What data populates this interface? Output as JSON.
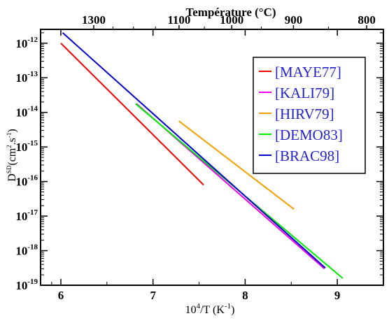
{
  "chart_data": {
    "type": "line",
    "title": "",
    "top_axis": {
      "label": "Température (°C)",
      "ticks": [
        "1300",
        "1100",
        "1000",
        "900",
        "800"
      ],
      "tick_celsius": [
        1300,
        1100,
        1000,
        900,
        800
      ]
    },
    "xlabel": {
      "base": "10",
      "sup1": "4",
      "mid": "/T (K",
      "sup2": "-1",
      "end": ")"
    },
    "ylabel": {
      "base": "D",
      "sup1": "SD",
      "mid": "(cm",
      "sup2": "2",
      "mid2": ".s",
      "sup3": "-1",
      "end": ")"
    },
    "xlim": [
      5.78,
      9.5
    ],
    "ylim_log10": [
      -19,
      -11.6
    ],
    "x_ticks": [
      6,
      7,
      8,
      9
    ],
    "x_tick_labels": [
      "6",
      "7",
      "8",
      "9"
    ],
    "y_tick_exponents": [
      -12,
      -13,
      -14,
      -15,
      -16,
      -17,
      -18,
      -19
    ],
    "y_tick_base": "10",
    "y_tick_labels": [
      "-12",
      "-13",
      "-14",
      "-15",
      "-16",
      "-17",
      "-18",
      "-19"
    ],
    "y_scale": "log",
    "grid": false,
    "legend_position": "top-right",
    "legend_color": "#2222cc",
    "series": [
      {
        "name": "[MAYE77]",
        "color": "#ee0000",
        "x": [
          6.0,
          7.55
        ],
        "y_log10": [
          -12.0,
          -16.1
        ]
      },
      {
        "name": "[KALI79]",
        "color": "#ee00ee",
        "x": [
          6.82,
          8.86
        ],
        "y_log10": [
          -13.75,
          -18.52
        ]
      },
      {
        "name": "[HIRV79]",
        "color": "#f5a000",
        "x": [
          7.28,
          8.53
        ],
        "y_log10": [
          -14.25,
          -16.8
        ]
      },
      {
        "name": "[DEMO83]",
        "color": "#00ee00",
        "x": [
          6.81,
          9.06
        ],
        "y_log10": [
          -13.75,
          -18.8
        ]
      },
      {
        "name": "[BRAC98]",
        "color": "#0000cc",
        "x": [
          6.02,
          8.87
        ],
        "y_log10": [
          -11.7,
          -18.5
        ]
      }
    ]
  }
}
